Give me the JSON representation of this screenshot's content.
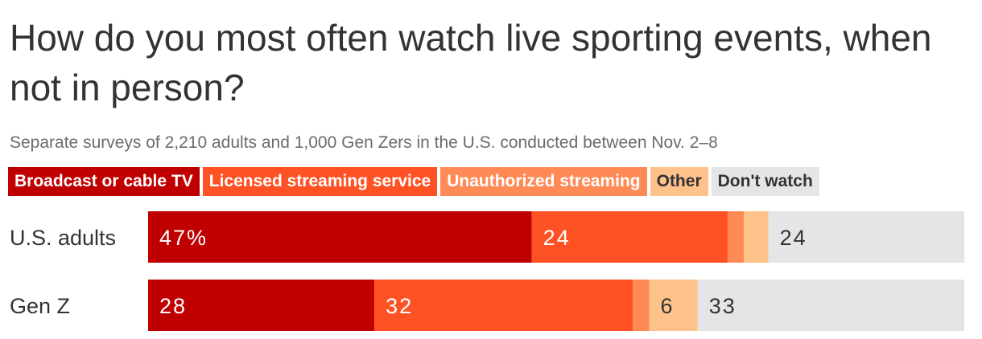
{
  "title": "How do you most often watch live sporting events, when not in person?",
  "subtitle": "Separate surveys of 2,210 adults and 1,000 Gen Zers in the U.S. conducted between Nov. 2–8",
  "legend": [
    {
      "label": "Broadcast or cable TV",
      "color": "#c00000",
      "text_color": "#ffffff"
    },
    {
      "label": "Licensed streaming service",
      "color": "#ff5224",
      "text_color": "#ffffff"
    },
    {
      "label": "Unauthorized streaming",
      "color": "#ff8a55",
      "text_color": "#ffffff"
    },
    {
      "label": "Other",
      "color": "#ffc28a",
      "text_color": "#333333"
    },
    {
      "label": "Don't watch",
      "color": "#e5e5e7",
      "text_color": "#333333"
    }
  ],
  "chart_data": {
    "type": "bar",
    "orientation": "horizontal",
    "stacked": true,
    "title": "How do you most often watch live sporting events, when not in person?",
    "subtitle": "Separate surveys of 2,210 adults and 1,000 Gen Zers in the U.S. conducted between Nov. 2–8",
    "categories": [
      "U.S. adults",
      "Gen Z"
    ],
    "unit": "%",
    "series": [
      {
        "name": "Broadcast or cable TV",
        "values": [
          47,
          28
        ],
        "color": "#c00000",
        "label_color": "#ffffff",
        "labels": [
          "47%",
          "28"
        ]
      },
      {
        "name": "Licensed streaming service",
        "values": [
          24,
          32
        ],
        "color": "#ff5224",
        "label_color": "#ffffff",
        "labels": [
          "24",
          "32"
        ]
      },
      {
        "name": "Unauthorized streaming",
        "values": [
          2,
          2
        ],
        "color": "#ff8a55",
        "label_color": "#ffffff",
        "labels": [
          "",
          ""
        ]
      },
      {
        "name": "Other",
        "values": [
          3,
          6
        ],
        "color": "#ffc28a",
        "label_color": "#333333",
        "labels": [
          "",
          "6"
        ]
      },
      {
        "name": "Don't watch",
        "values": [
          24,
          33
        ],
        "color": "#e5e5e7",
        "label_color": "#333333",
        "labels": [
          "24",
          "33"
        ]
      }
    ],
    "legend_position": "top",
    "grid": false
  }
}
